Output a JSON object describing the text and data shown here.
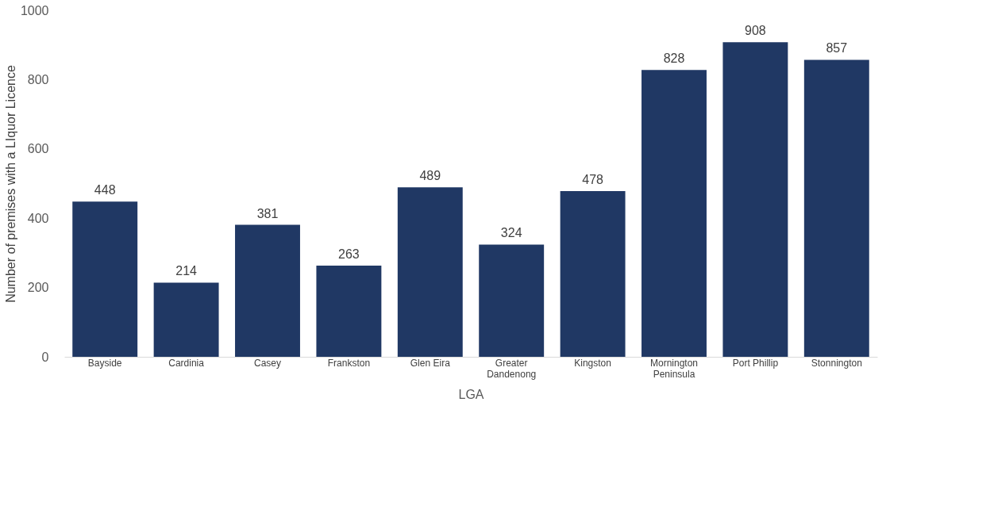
{
  "chart_data": {
    "type": "bar",
    "xlabel": "LGA",
    "ylabel": "Number of  premises with a LIquor Licence",
    "categories": [
      "Bayside",
      "Cardinia",
      "Casey",
      "Frankston",
      "Glen Eira",
      "Greater Dandenong",
      "Kingston",
      "Mornington Peninsula",
      "Port Phillip",
      "Stonnington"
    ],
    "values": [
      448,
      214,
      381,
      263,
      489,
      324,
      478,
      828,
      908,
      857
    ],
    "color": "#203864",
    "ylim": [
      0,
      1000
    ],
    "yticks": [
      0,
      200,
      400,
      600,
      800,
      1000
    ],
    "grid": false,
    "data_labels": true
  }
}
